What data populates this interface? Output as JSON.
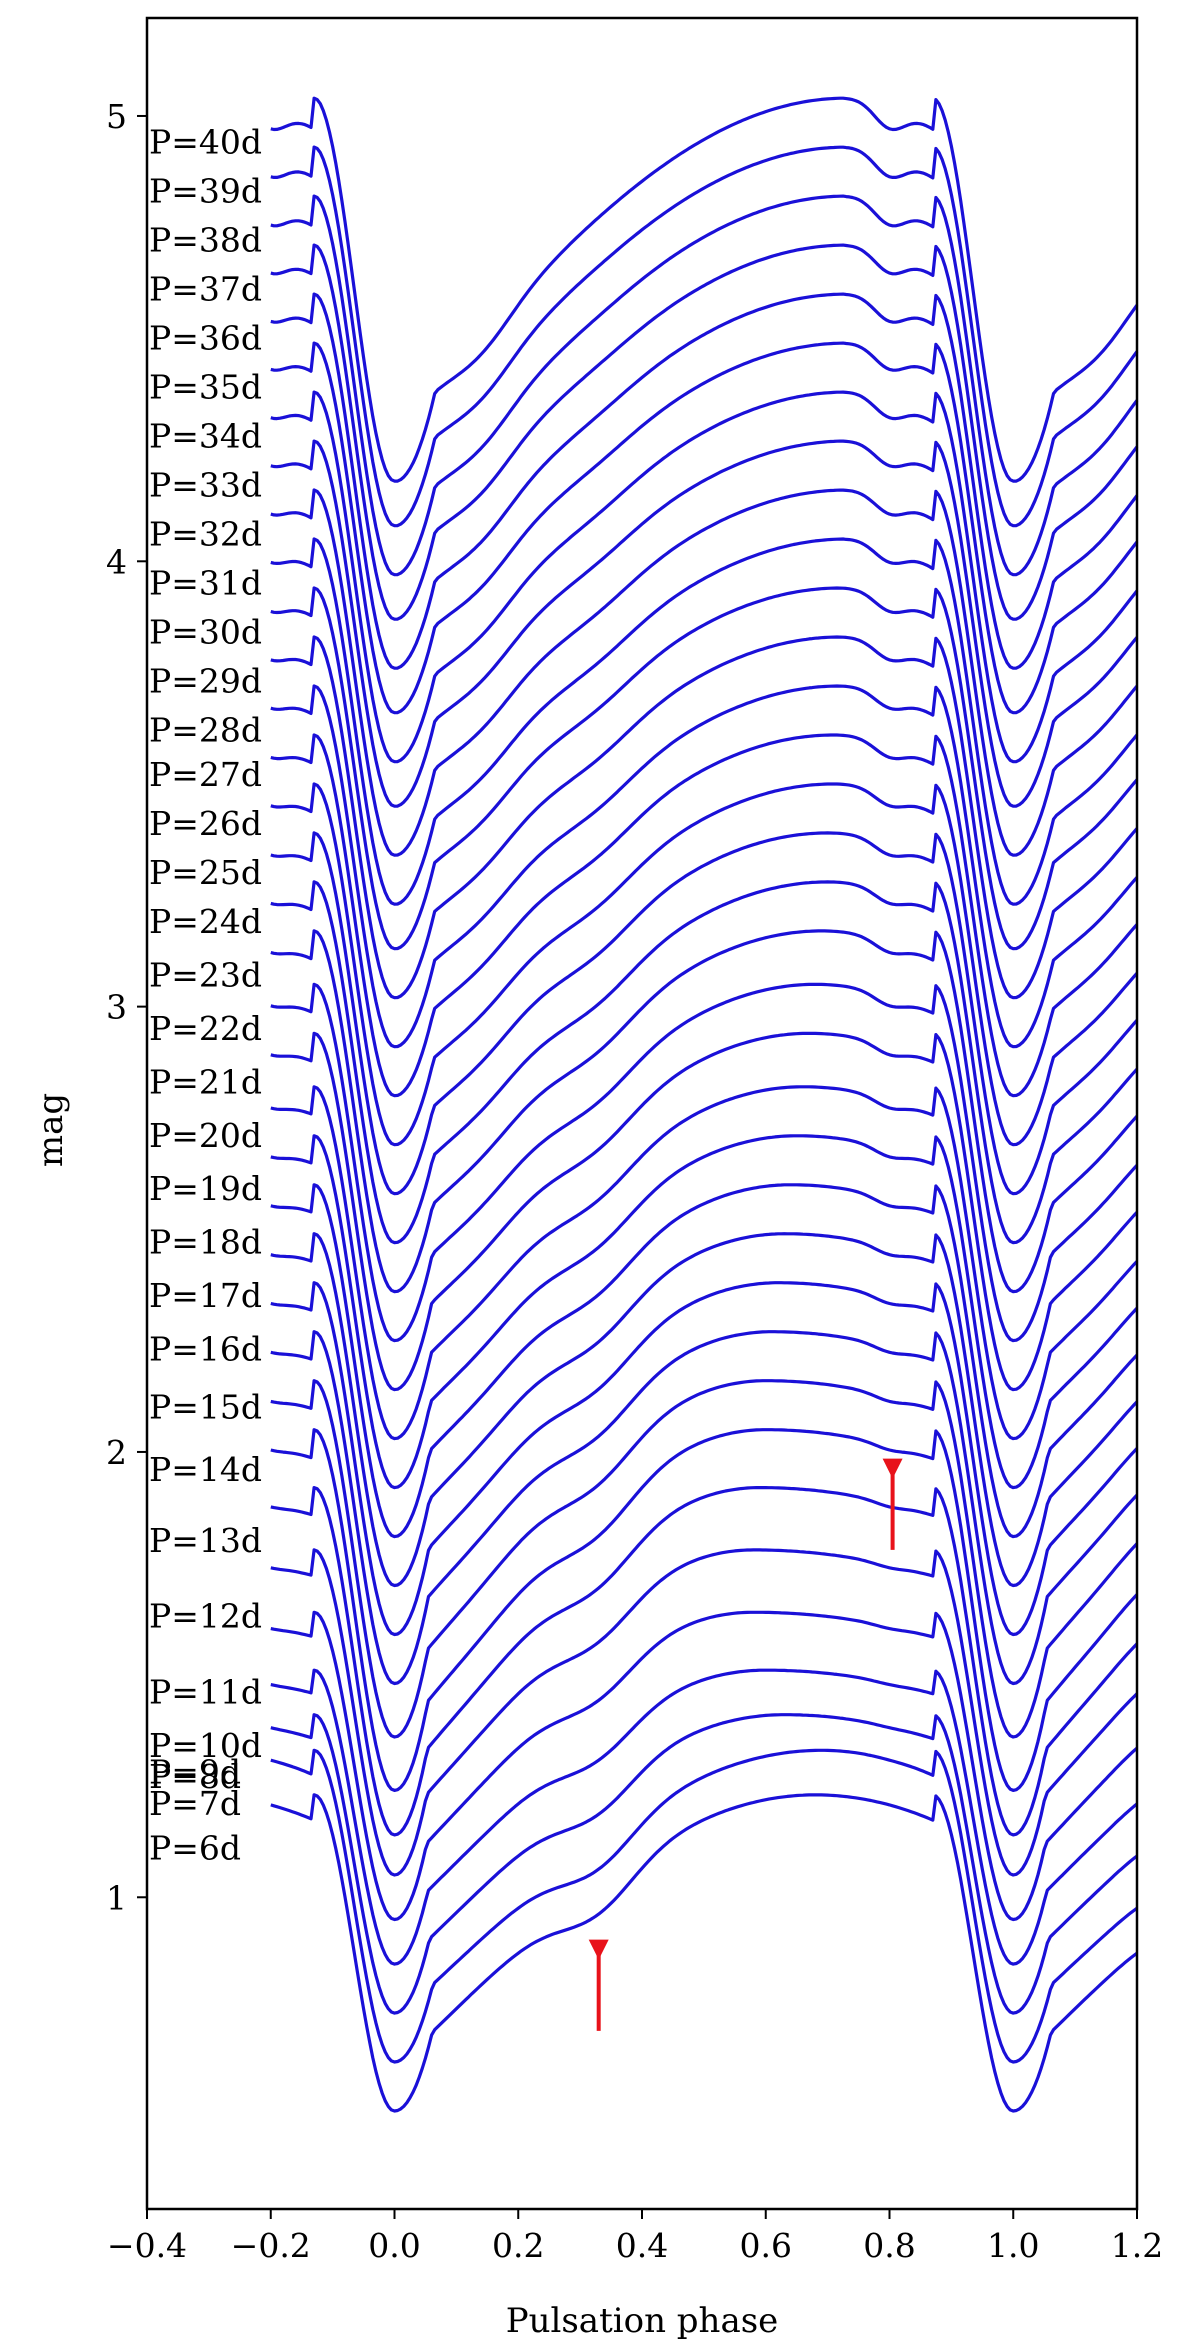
{
  "chart_data": {
    "type": "line",
    "title": "",
    "xlabel": "Pulsation phase",
    "ylabel": "mag",
    "xlim": [
      -0.4,
      1.2
    ],
    "ylim": [
      5.22,
      0.3
    ],
    "y_inverted": true,
    "grid": false,
    "legend": "none",
    "line_color": "#1a10d8",
    "arrow_color": "#e8121a",
    "x_ticks": [
      "−0.4",
      "−0.2",
      "0.0",
      "0.2",
      "0.4",
      "0.6",
      "0.8",
      "1.0",
      "1.2"
    ],
    "x_tick_values": [
      -0.4,
      -0.2,
      0.0,
      0.2,
      0.4,
      0.6,
      0.8,
      1.0,
      1.2
    ],
    "y_ticks": [
      "1",
      "2",
      "3",
      "4",
      "5"
    ],
    "y_tick_values": [
      1,
      2,
      3,
      4,
      5
    ],
    "phase_range": [
      -0.2,
      1.2
    ],
    "series": [
      {
        "name": "P=6d",
        "period": 6,
        "label_mag": 1.11,
        "max_mag": 0.52,
        "min_mag": 1.23,
        "min_phase": 0.68
      },
      {
        "name": "P=7d",
        "period": 7,
        "label_mag": 1.21,
        "max_mag": 0.63,
        "min_mag": 1.33,
        "min_phase": 0.69
      },
      {
        "name": "P=8d",
        "period": 8,
        "label_mag": 1.27,
        "max_mag": 0.74,
        "min_mag": 1.41,
        "min_phase": 0.63
      },
      {
        "name": "P=9d",
        "period": 9,
        "label_mag": 1.28,
        "max_mag": 0.85,
        "min_mag": 1.51,
        "min_phase": 0.6
      },
      {
        "name": "P=10d",
        "period": 10,
        "label_mag": 1.34,
        "max_mag": 0.95,
        "min_mag": 1.64,
        "min_phase": 0.58
      },
      {
        "name": "P=11d",
        "period": 11,
        "label_mag": 1.46,
        "max_mag": 1.05,
        "min_mag": 1.78,
        "min_phase": 0.58
      },
      {
        "name": "P=12d",
        "period": 12,
        "label_mag": 1.63,
        "max_mag": 1.14,
        "min_mag": 1.92,
        "min_phase": 0.59
      },
      {
        "name": "P=13d",
        "period": 13,
        "label_mag": 1.8,
        "max_mag": 1.24,
        "min_mag": 2.05,
        "min_phase": 0.6
      },
      {
        "name": "P=14d",
        "period": 14,
        "label_mag": 1.96,
        "max_mag": 1.36,
        "min_mag": 2.16,
        "min_phase": 0.6
      },
      {
        "name": "P=15d",
        "period": 15,
        "label_mag": 2.1,
        "max_mag": 1.48,
        "min_mag": 2.27,
        "min_phase": 0.61
      },
      {
        "name": "P=16d",
        "period": 16,
        "label_mag": 2.23,
        "max_mag": 1.59,
        "min_mag": 2.38,
        "min_phase": 0.62
      },
      {
        "name": "P=17d",
        "period": 17,
        "label_mag": 2.35,
        "max_mag": 1.7,
        "min_mag": 2.49,
        "min_phase": 0.63
      },
      {
        "name": "P=18d",
        "period": 18,
        "label_mag": 2.47,
        "max_mag": 1.81,
        "min_mag": 2.6,
        "min_phase": 0.64
      },
      {
        "name": "P=19d",
        "period": 19,
        "label_mag": 2.59,
        "max_mag": 1.92,
        "min_mag": 2.71,
        "min_phase": 0.65
      },
      {
        "name": "P=20d",
        "period": 20,
        "label_mag": 2.71,
        "max_mag": 2.03,
        "min_mag": 2.82,
        "min_phase": 0.66
      },
      {
        "name": "P=21d",
        "period": 21,
        "label_mag": 2.83,
        "max_mag": 2.14,
        "min_mag": 2.94,
        "min_phase": 0.67
      },
      {
        "name": "P=22d",
        "period": 22,
        "label_mag": 2.95,
        "max_mag": 2.25,
        "min_mag": 3.05,
        "min_phase": 0.68
      },
      {
        "name": "P=23d",
        "period": 23,
        "label_mag": 3.07,
        "max_mag": 2.36,
        "min_mag": 3.17,
        "min_phase": 0.69
      },
      {
        "name": "P=24d",
        "period": 24,
        "label_mag": 3.19,
        "max_mag": 2.47,
        "min_mag": 3.28,
        "min_phase": 0.7
      },
      {
        "name": "P=25d",
        "period": 25,
        "label_mag": 3.3,
        "max_mag": 2.58,
        "min_mag": 3.39,
        "min_phase": 0.7
      },
      {
        "name": "P=26d",
        "period": 26,
        "label_mag": 3.41,
        "max_mag": 2.69,
        "min_mag": 3.5,
        "min_phase": 0.71
      },
      {
        "name": "P=27d",
        "period": 27,
        "label_mag": 3.52,
        "max_mag": 2.8,
        "min_mag": 3.61,
        "min_phase": 0.71
      },
      {
        "name": "P=28d",
        "period": 28,
        "label_mag": 3.62,
        "max_mag": 2.91,
        "min_mag": 3.72,
        "min_phase": 0.72
      },
      {
        "name": "P=29d",
        "period": 29,
        "label_mag": 3.73,
        "max_mag": 3.02,
        "min_mag": 3.83,
        "min_phase": 0.72
      },
      {
        "name": "P=30d",
        "period": 30,
        "label_mag": 3.84,
        "max_mag": 3.13,
        "min_mag": 3.94,
        "min_phase": 0.72
      },
      {
        "name": "P=31d",
        "period": 31,
        "label_mag": 3.95,
        "max_mag": 3.23,
        "min_mag": 4.05,
        "min_phase": 0.73
      },
      {
        "name": "P=32d",
        "period": 32,
        "label_mag": 4.06,
        "max_mag": 3.34,
        "min_mag": 4.16,
        "min_phase": 0.73
      },
      {
        "name": "P=33d",
        "period": 33,
        "label_mag": 4.17,
        "max_mag": 3.45,
        "min_mag": 4.27,
        "min_phase": 0.73
      },
      {
        "name": "P=34d",
        "period": 34,
        "label_mag": 4.28,
        "max_mag": 3.55,
        "min_mag": 4.38,
        "min_phase": 0.73
      },
      {
        "name": "P=35d",
        "period": 35,
        "label_mag": 4.39,
        "max_mag": 3.66,
        "min_mag": 4.49,
        "min_phase": 0.73
      },
      {
        "name": "P=36d",
        "period": 36,
        "label_mag": 4.5,
        "max_mag": 3.76,
        "min_mag": 4.6,
        "min_phase": 0.73
      },
      {
        "name": "P=37d",
        "period": 37,
        "label_mag": 4.61,
        "max_mag": 3.87,
        "min_mag": 4.71,
        "min_phase": 0.73
      },
      {
        "name": "P=38d",
        "period": 38,
        "label_mag": 4.72,
        "max_mag": 3.97,
        "min_mag": 4.82,
        "min_phase": 0.73
      },
      {
        "name": "P=39d",
        "period": 39,
        "label_mag": 4.83,
        "max_mag": 4.08,
        "min_mag": 4.93,
        "min_phase": 0.73
      },
      {
        "name": "P=40d",
        "period": 40,
        "label_mag": 4.94,
        "max_mag": 4.18,
        "min_mag": 5.04,
        "min_phase": 0.73
      }
    ],
    "annotations": [
      {
        "type": "arrow",
        "x": 0.33,
        "y_from": 0.7,
        "y_to": 0.86
      },
      {
        "type": "arrow",
        "x": 0.805,
        "y_from": 1.78,
        "y_to": 1.94
      }
    ]
  }
}
